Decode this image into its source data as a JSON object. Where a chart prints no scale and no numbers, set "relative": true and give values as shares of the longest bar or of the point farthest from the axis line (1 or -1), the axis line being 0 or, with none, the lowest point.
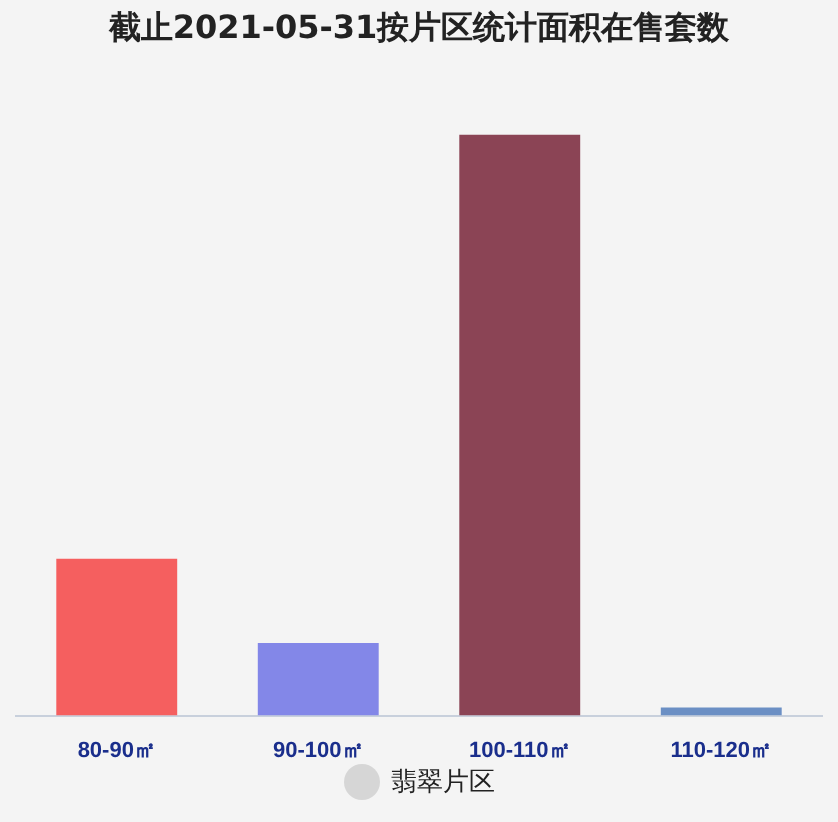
{
  "chart_data": {
    "type": "bar",
    "title": "截止2021-05-31按片区统计面积在售套数",
    "categories": [
      "80-90㎡",
      "90-100㎡",
      "100-110㎡",
      "110-120㎡"
    ],
    "relative": true,
    "legend": "bottom",
    "series": [
      {
        "name": "翡翠片区",
        "colors": [
          "#f55f5f",
          "#8387e8",
          "#8b4455",
          "#6b8fc4"
        ],
        "values": [
          0.27,
          0.125,
          1,
          0.014
        ]
      }
    ]
  }
}
